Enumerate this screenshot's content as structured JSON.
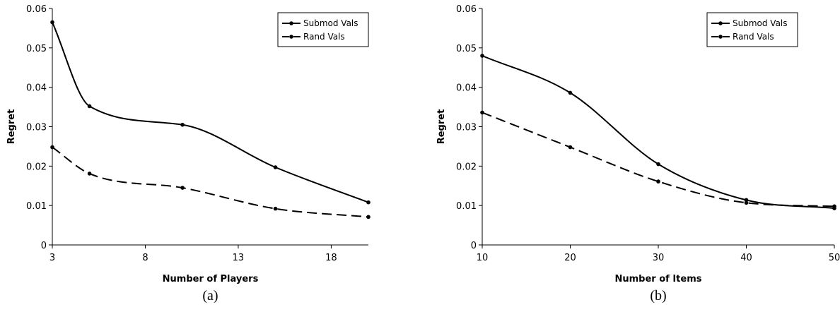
{
  "chart_data": [
    {
      "type": "line",
      "caption": "(a)",
      "xlabel": "Number of Players",
      "ylabel": "Regret",
      "xlim": [
        3,
        20
      ],
      "ylim": [
        0,
        0.06
      ],
      "xticks": [
        3,
        8,
        13,
        18
      ],
      "yticks": [
        0,
        0.01,
        0.02,
        0.03,
        0.04,
        0.05,
        0.06
      ],
      "ytick_labels": [
        "0",
        "0.01",
        "0.02",
        "0.03",
        "0.04",
        "0.05",
        "0.06"
      ],
      "legend_position": "top-right",
      "series": [
        {
          "name": "Submod Vals",
          "style": "solid",
          "x": [
            3,
            5,
            10,
            15,
            20
          ],
          "y": [
            0.0565,
            0.0352,
            0.0305,
            0.0197,
            0.0108
          ]
        },
        {
          "name": "Rand Vals",
          "style": "dashed",
          "x": [
            3,
            5,
            10,
            15,
            20
          ],
          "y": [
            0.0248,
            0.0181,
            0.0145,
            0.0092,
            0.0071
          ]
        }
      ]
    },
    {
      "type": "line",
      "caption": "(b)",
      "xlabel": "Number of Items",
      "ylabel": "Regret",
      "xlim": [
        10,
        50
      ],
      "ylim": [
        0,
        0.06
      ],
      "xticks": [
        10,
        20,
        30,
        40,
        50
      ],
      "yticks": [
        0,
        0.01,
        0.02,
        0.03,
        0.04,
        0.05,
        0.06
      ],
      "ytick_labels": [
        "0",
        "0.01",
        "0.02",
        "0.03",
        "0.04",
        "0.05",
        "0.06"
      ],
      "legend_position": "top-right",
      "series": [
        {
          "name": "Submod Vals",
          "style": "solid",
          "x": [
            10,
            20,
            30,
            40,
            50
          ],
          "y": [
            0.048,
            0.0386,
            0.0205,
            0.0114,
            0.0093
          ]
        },
        {
          "name": "Rand Vals",
          "style": "dashed",
          "x": [
            10,
            20,
            30,
            40,
            50
          ],
          "y": [
            0.0336,
            0.0248,
            0.0161,
            0.0107,
            0.0098
          ]
        }
      ]
    }
  ]
}
